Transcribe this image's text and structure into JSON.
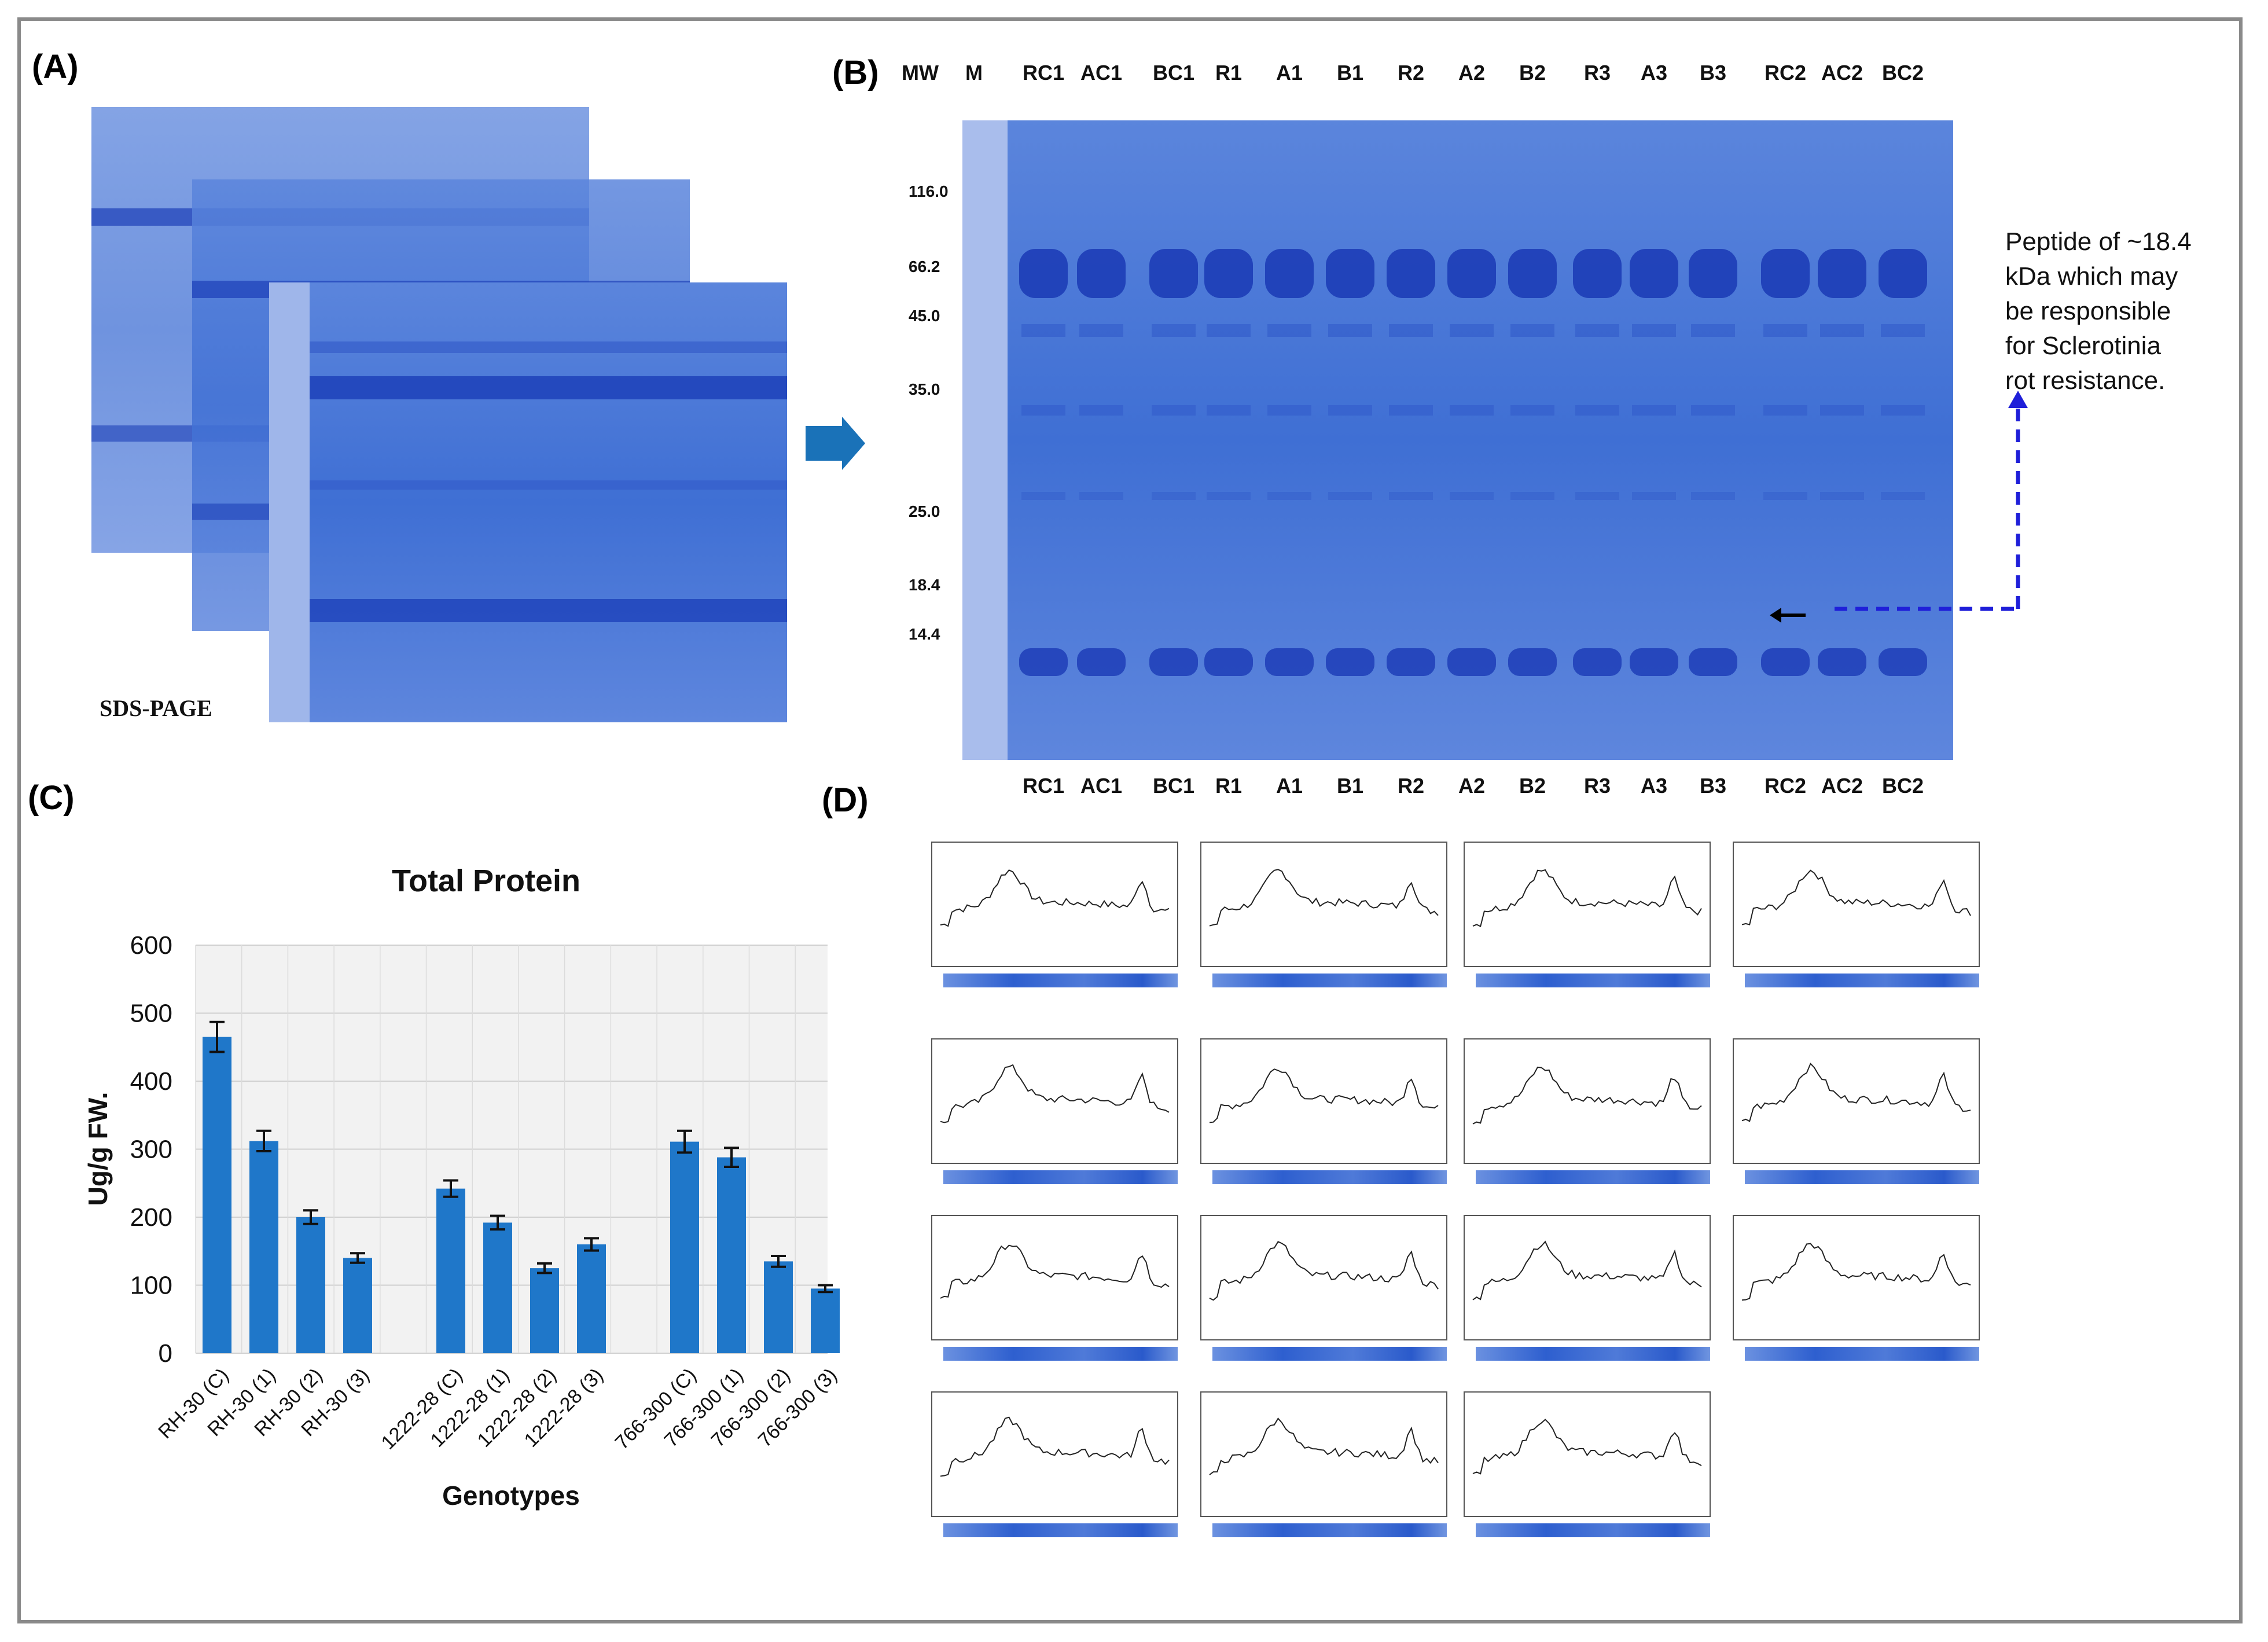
{
  "panels": {
    "A": {
      "label": "(A)",
      "caption": "SDS-PAGE"
    },
    "B": {
      "label": "(B)",
      "header_mw": "MW",
      "header_m": "M",
      "lanes": [
        "RC1",
        "AC1",
        "BC1",
        "R1",
        "A1",
        "B1",
        "R2",
        "A2",
        "B2",
        "R3",
        "A3",
        "B3",
        "RC2",
        "AC2",
        "BC2"
      ],
      "markers": [
        "116.0",
        "66.2",
        "45.0",
        "35.0",
        "25.0",
        "18.4",
        "14.4"
      ],
      "annotation": [
        "Peptide of ~18.4",
        "kDa which may",
        "be responsible",
        "for Sclerotinia",
        "rot resistance."
      ]
    },
    "C": {
      "label": "(C)"
    },
    "D": {
      "label": "(D)"
    }
  },
  "colors": {
    "bar": "#1f77c9",
    "gel": "#4a78d6",
    "arrow_blue": "#1f1fd9",
    "arrow_teal": "#1a72b8"
  },
  "chart_data": {
    "type": "bar",
    "title": "Total Protein",
    "xlabel": "Genotypes",
    "ylabel": "Ug/g FW.",
    "ylim": [
      0,
      600
    ],
    "yticks": [
      0,
      100,
      200,
      300,
      400,
      500,
      600
    ],
    "grid": true,
    "categories": [
      "RH-30 (C)",
      "RH-30 (1)",
      "RH-30 (2)",
      "RH-30 (3)",
      "1222-28 (C)",
      "1222-28 (1)",
      "1222-28 (2)",
      "1222-28 (3)",
      "766-300 (C)",
      "766-300 (1)",
      "766-300 (2)",
      "766-300 (3)"
    ],
    "groups": [
      [
        0,
        1,
        2,
        3
      ],
      [
        4,
        5,
        6,
        7
      ],
      [
        8,
        9,
        10,
        11
      ]
    ],
    "values": [
      465,
      312,
      200,
      140,
      242,
      192,
      125,
      160,
      311,
      288,
      135,
      95
    ],
    "errors": [
      22,
      15,
      10,
      7,
      12,
      10,
      7,
      9,
      16,
      14,
      8,
      5
    ]
  }
}
